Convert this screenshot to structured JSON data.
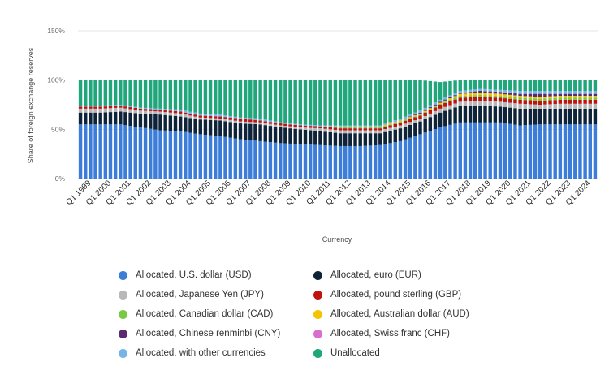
{
  "chart_data": {
    "type": "bar",
    "stacked": true,
    "title": "",
    "xlabel": "Currency",
    "ylabel": "Share of foreign exchange reserves",
    "ylim": [
      0,
      150
    ],
    "yticks": [
      "0%",
      "50%",
      "100%",
      "150%"
    ],
    "grid": true,
    "legend_position": "bottom",
    "categories": [
      "Q1 1999",
      "Q1 2000",
      "Q1 2001",
      "Q1 2002",
      "Q1 2003",
      "Q1 2004",
      "Q1 2005",
      "Q1 2006",
      "Q1 2007",
      "Q1 2008",
      "Q1 2009",
      "Q1 2010",
      "Q1 2011",
      "Q1 2012",
      "Q1 2013",
      "Q1 2014",
      "Q1 2015",
      "Q1 2016",
      "Q1 2017",
      "Q1 2018",
      "Q1 2019",
      "Q1 2020",
      "Q1 2021",
      "Q1 2022",
      "Q1 2023",
      "Q1 2024"
    ],
    "series": [
      {
        "name": "Allocated, U.S. dollar (USD)",
        "color": "#3b7dd8",
        "values": [
          55,
          55,
          55,
          52,
          49,
          48,
          45,
          43,
          40,
          38,
          36,
          35,
          34,
          33,
          33,
          34,
          38,
          45,
          52,
          57,
          57,
          57,
          54,
          55,
          55,
          55
        ]
      },
      {
        "name": "Allocated, euro (EUR)",
        "color": "#0f2338",
        "values": [
          12,
          12,
          13,
          14,
          16,
          15,
          15,
          16,
          16,
          17,
          16,
          15,
          14,
          13,
          13,
          12,
          13,
          13,
          15,
          17,
          17,
          16,
          17,
          16,
          16,
          16
        ]
      },
      {
        "name": "Allocated, Japanese Yen (JPY)",
        "color": "#b8b8b8",
        "values": [
          4,
          4,
          4,
          3,
          3,
          3,
          2,
          2,
          2,
          2,
          2,
          2,
          3,
          3,
          3,
          3,
          3,
          3,
          4,
          4,
          5,
          5,
          5,
          4,
          5,
          5
        ]
      },
      {
        "name": "Allocated, pound sterling (GBP)",
        "color": "#c0130f",
        "values": [
          2,
          2,
          2,
          2,
          2,
          2,
          2,
          2,
          3,
          2,
          2,
          2,
          2,
          2,
          2,
          2,
          3,
          3,
          4,
          4,
          4,
          4,
          4,
          4,
          4,
          4
        ]
      },
      {
        "name": "Allocated, Canadian dollar (CAD)",
        "color": "#7ac943",
        "values": [
          0,
          0,
          0,
          0,
          0,
          0,
          0,
          0,
          0,
          0,
          0,
          0,
          0,
          1,
          1,
          1,
          1,
          1,
          1,
          2,
          2,
          2,
          2,
          2,
          2,
          2
        ]
      },
      {
        "name": "Allocated, Australian dollar (AUD)",
        "color": "#f5c400",
        "values": [
          0,
          0,
          0,
          0,
          0,
          0,
          0,
          0,
          0,
          0,
          0,
          0,
          0,
          1,
          1,
          1,
          1,
          1,
          1,
          2,
          2,
          2,
          2,
          2,
          2,
          2
        ]
      },
      {
        "name": "Allocated, Chinese renminbi (CNY)",
        "color": "#5b2a6e",
        "values": [
          0,
          0,
          0,
          0,
          0,
          0,
          0,
          0,
          0,
          0,
          0,
          0,
          0,
          0,
          0,
          0,
          0,
          1,
          1,
          1,
          2,
          2,
          2,
          3,
          2,
          2
        ]
      },
      {
        "name": "Allocated, Swiss franc (CHF)",
        "color": "#d86fd0",
        "values": [
          0,
          0,
          0,
          0,
          0,
          0,
          0,
          0,
          0,
          0,
          0,
          0,
          0,
          0,
          0,
          0,
          0,
          0,
          0,
          0,
          0,
          0,
          0,
          0,
          0,
          0
        ]
      },
      {
        "name": "Allocated, with other currencies",
        "color": "#76b4e8",
        "values": [
          1,
          1,
          1,
          1,
          1,
          2,
          2,
          2,
          1,
          2,
          1,
          1,
          1,
          1,
          1,
          1,
          2,
          2,
          2,
          2,
          2,
          2,
          3,
          3,
          3,
          3
        ]
      },
      {
        "name": "Unallocated",
        "color": "#20a67b",
        "values": [
          26,
          26,
          25,
          28,
          29,
          30,
          34,
          35,
          38,
          39,
          43,
          45,
          46,
          46,
          46,
          46,
          39,
          31,
          18,
          11,
          9,
          10,
          11,
          11,
          11,
          11
        ]
      }
    ]
  }
}
